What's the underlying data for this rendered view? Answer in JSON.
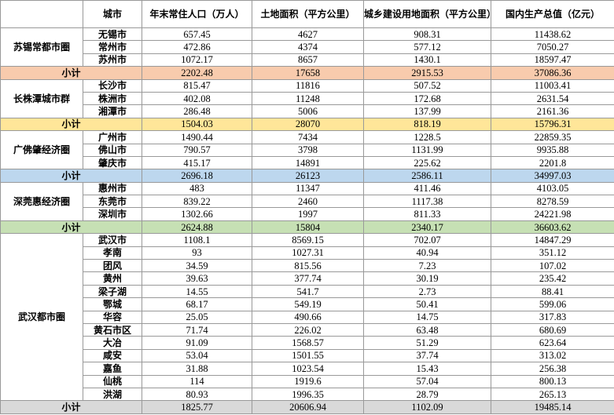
{
  "table": {
    "header": [
      "城市",
      "年末常住人口（万人）",
      "土地面积（平方公里）",
      "城乡建设用地面积（平方公里）",
      "国内生产总值（亿元）"
    ],
    "groups": [
      {
        "name": "苏锡常都市圈",
        "color": "#f8cbad",
        "rows": [
          [
            "无锡市",
            "657.45",
            "4627",
            "908.31",
            "11438.62"
          ],
          [
            "常州市",
            "472.86",
            "4374",
            "577.12",
            "7050.27"
          ],
          [
            "苏州市",
            "1072.17",
            "8657",
            "1430.1",
            "18597.47"
          ]
        ],
        "subtotal": [
          "小计",
          "2202.48",
          "17658",
          "2915.53",
          "37086.36"
        ]
      },
      {
        "name": "长株潭城市群",
        "color": "#ffe699",
        "rows": [
          [
            "长沙市",
            "815.47",
            "11816",
            "507.52",
            "11003.41"
          ],
          [
            "株洲市",
            "402.08",
            "11248",
            "172.68",
            "2631.54"
          ],
          [
            "湘潭市",
            "286.48",
            "5006",
            "137.99",
            "2161.36"
          ]
        ],
        "subtotal": [
          "小计",
          "1504.03",
          "28070",
          "818.19",
          "15796.31"
        ]
      },
      {
        "name": "广佛肇经济圈",
        "color": "#bdd7ee",
        "rows": [
          [
            "广州市",
            "1490.44",
            "7434",
            "1228.5",
            "22859.35"
          ],
          [
            "佛山市",
            "790.57",
            "3798",
            "1131.99",
            "9935.88"
          ],
          [
            "肇庆市",
            "415.17",
            "14891",
            "225.62",
            "2201.8"
          ]
        ],
        "subtotal": [
          "小计",
          "2696.18",
          "26123",
          "2586.11",
          "34997.03"
        ]
      },
      {
        "name": "深莞惠经济圈",
        "color": "#c6e0b4",
        "rows": [
          [
            "惠州市",
            "483",
            "11347",
            "411.46",
            "4103.05"
          ],
          [
            "东莞市",
            "839.22",
            "2460",
            "1117.38",
            "8278.59"
          ],
          [
            "深圳市",
            "1302.66",
            "1997",
            "811.33",
            "24221.98"
          ]
        ],
        "subtotal": [
          "小计",
          "2624.88",
          "15804",
          "2340.17",
          "36603.62"
        ]
      },
      {
        "name": "武汉都市圈",
        "color": "#d9d9d9",
        "rows": [
          [
            "武汉市",
            "1108.1",
            "8569.15",
            "702.07",
            "14847.29"
          ],
          [
            "孝南",
            "93",
            "1027.31",
            "40.94",
            "351.12"
          ],
          [
            "团风",
            "34.59",
            "815.56",
            "7.23",
            "107.02"
          ],
          [
            "黄州",
            "39.63",
            "377.74",
            "30.19",
            "235.42"
          ],
          [
            "梁子湖",
            "14.55",
            "541.7",
            "2.73",
            "88.41"
          ],
          [
            "鄂城",
            "68.17",
            "549.19",
            "50.41",
            "599.06"
          ],
          [
            "华容",
            "25.05",
            "490.66",
            "14.75",
            "317.83"
          ],
          [
            "黄石市区",
            "71.74",
            "226.02",
            "63.48",
            "680.69"
          ],
          [
            "大冶",
            "91.09",
            "1568.57",
            "51.29",
            "623.64"
          ],
          [
            "咸安",
            "53.04",
            "1501.55",
            "37.74",
            "313.02"
          ],
          [
            "嘉鱼",
            "31.88",
            "1023.54",
            "15.43",
            "256.38"
          ],
          [
            "仙桃",
            "114",
            "1919.6",
            "57.04",
            "800.13"
          ],
          [
            "洪湖",
            "80.93",
            "1996.35",
            "28.79",
            "265.13"
          ]
        ],
        "subtotal": [
          "小计",
          "1825.77",
          "20606.94",
          "1102.09",
          "19485.14"
        ]
      }
    ]
  }
}
